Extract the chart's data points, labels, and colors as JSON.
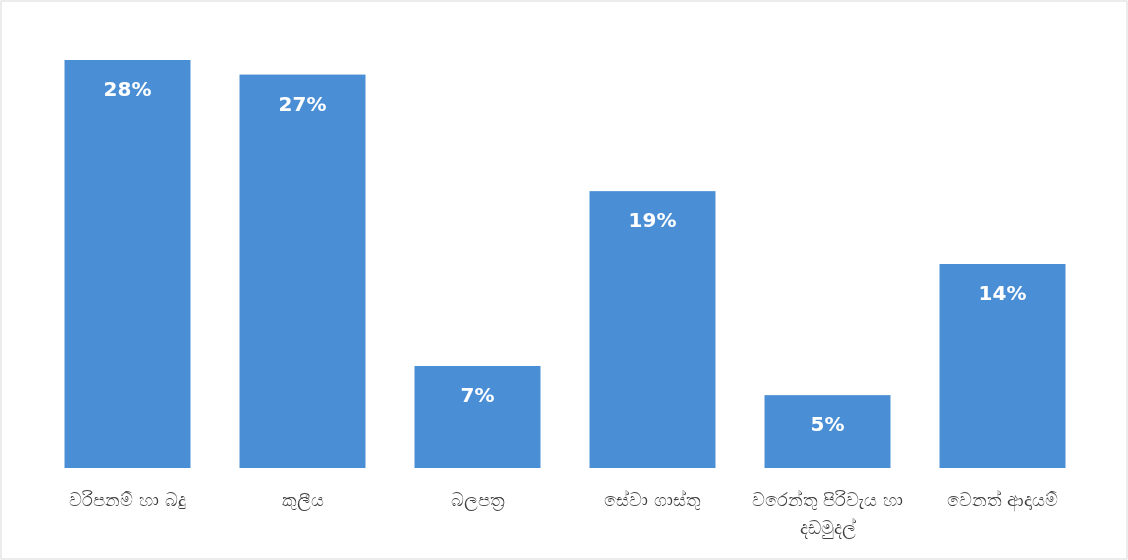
{
  "chart_data": {
    "type": "bar",
    "categories": [
      "වරිපනම් හා බදු",
      "කුලීය",
      "බලපත්‍ර",
      "සේවා ගාස්තු",
      "වරෙන්තු පිරිවැය හා දඩමුදල්",
      "වෙනත් ආදායම්"
    ],
    "values": [
      28,
      27,
      7,
      19,
      5,
      14
    ],
    "value_labels": [
      "28%",
      "27%",
      "7%",
      "19%",
      "5%",
      "14%"
    ],
    "color": "#4a8fd6"
  }
}
